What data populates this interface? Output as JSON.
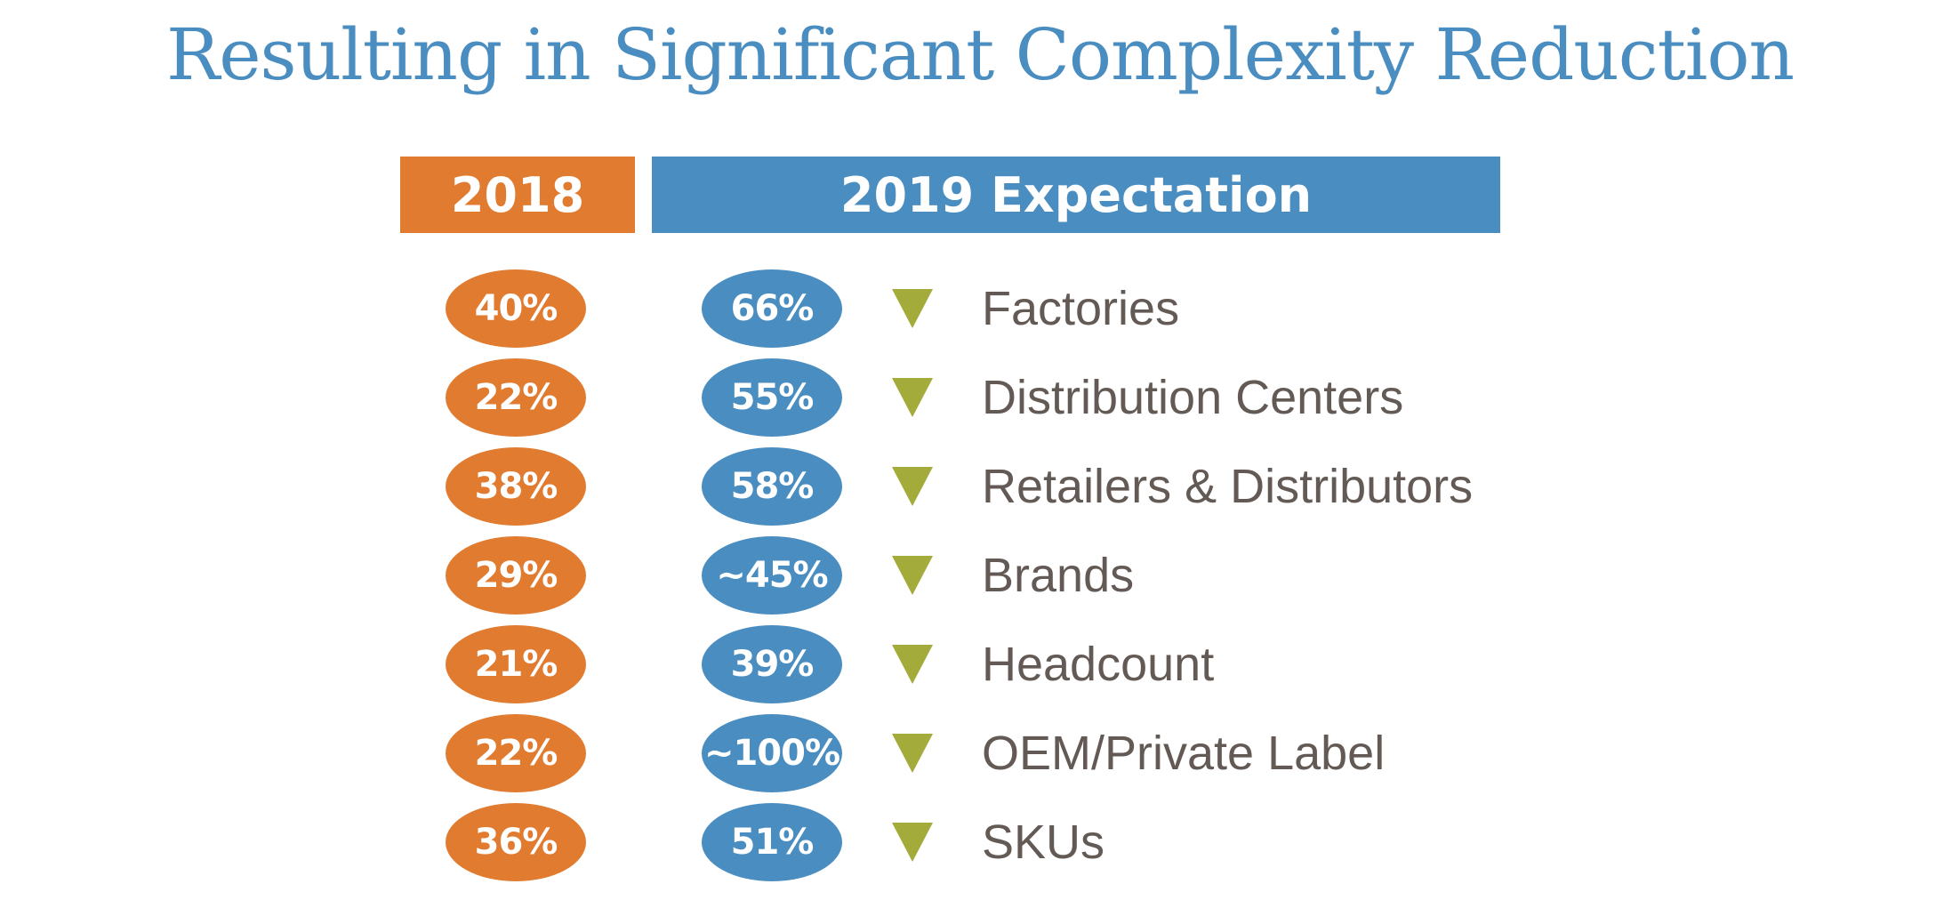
{
  "title": "Resulting in Significant Complexity Reduction",
  "headers": {
    "year_2018": "2018",
    "year_2019": "2019 Expectation"
  },
  "colors": {
    "title": "#4a8dc0",
    "orange": "#e07b30",
    "blue": "#4a8dc0",
    "arrow": "#a3ab3a",
    "label_text": "#635a55"
  },
  "rows": [
    {
      "v2018": "40%",
      "v2019": "66%",
      "icon": "down-triangle-icon",
      "label": "Factories"
    },
    {
      "v2018": "22%",
      "v2019": "55%",
      "icon": "down-triangle-icon",
      "label": "Distribution Centers"
    },
    {
      "v2018": "38%",
      "v2019": "58%",
      "icon": "down-triangle-icon",
      "label": "Retailers & Distributors"
    },
    {
      "v2018": "29%",
      "v2019": "~45%",
      "icon": "down-triangle-icon",
      "label": "Brands"
    },
    {
      "v2018": "21%",
      "v2019": "39%",
      "icon": "down-triangle-icon",
      "label": "Headcount"
    },
    {
      "v2018": "22%",
      "v2019": "~100%",
      "icon": "down-triangle-icon",
      "label": "OEM/Private Label"
    },
    {
      "v2018": "36%",
      "v2019": "51%",
      "icon": "down-triangle-icon",
      "label": "SKUs"
    }
  ]
}
